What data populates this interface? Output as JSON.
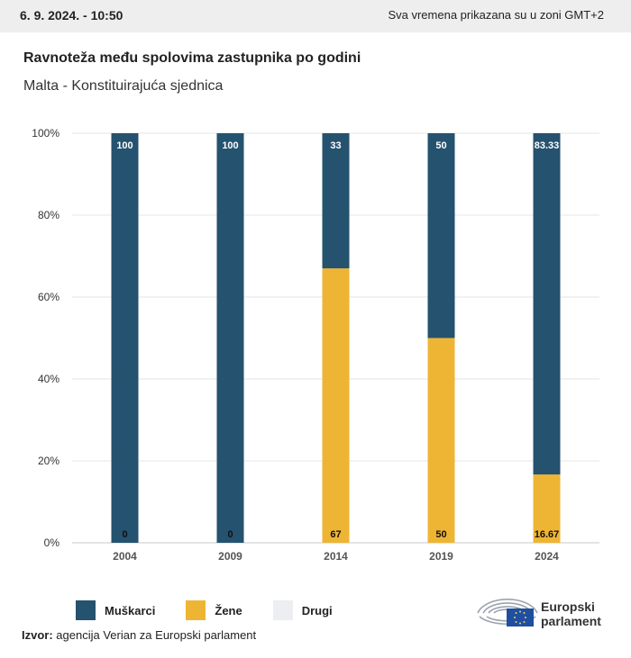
{
  "header": {
    "date": "6. 9. 2024. - 10:50",
    "timezone_note": "Sva vremena prikazana su u zoni GMT+2"
  },
  "chart_data": {
    "type": "bar",
    "stacked": true,
    "title": "Ravnoteža među spolovima zastupnika po godini",
    "subtitle": "Malta - Konstituirajuća sjednica",
    "categories": [
      "2004",
      "2009",
      "2014",
      "2019",
      "2024"
    ],
    "series": [
      {
        "name": "Muškarci",
        "color": "#24526f",
        "values": [
          100,
          100,
          33,
          50,
          83.33
        ],
        "labels": [
          "100",
          "100",
          "33",
          "50",
          "83.33"
        ]
      },
      {
        "name": "Žene",
        "color": "#eeb534",
        "values": [
          0,
          0,
          67,
          50,
          16.67
        ],
        "labels": [
          "0",
          "0",
          "67",
          "50",
          "16.67"
        ]
      },
      {
        "name": "Drugi",
        "color": "#eceef1",
        "values": [
          0,
          0,
          0,
          0,
          0
        ]
      }
    ],
    "ylim": [
      0,
      100
    ],
    "yticks": [
      "0%",
      "20%",
      "40%",
      "60%",
      "80%",
      "100%"
    ],
    "grid": true,
    "legend_position": "bottom-left"
  },
  "footer": {
    "source_label": "Izvor:",
    "source_text": "agencija Verian za Europski parlament",
    "logo_line1": "Europski",
    "logo_line2": "parlament"
  }
}
